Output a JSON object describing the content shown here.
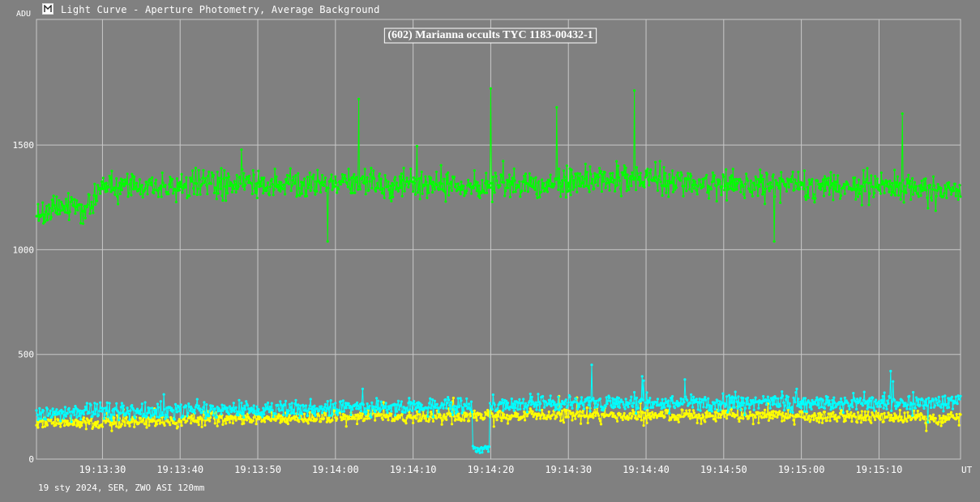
{
  "window": {
    "title": "Light Curve - Aperture Photometry, Average Background"
  },
  "footer": {
    "note": "19 sty 2024, SER, ZWO ASI 120mm"
  },
  "colors": {
    "background": "#808080",
    "grid": "#c8c8c8",
    "target_series": "#00ff00",
    "comparison_series": "#00ffff",
    "background_series": "#ffff00"
  },
  "chart_data": {
    "type": "line",
    "title": "(602) Marianna occults TYC 1183-00432-1",
    "ylabel": "ADU",
    "xlabel": "UT",
    "grid": true,
    "markers": true,
    "ylim": [
      0,
      2100
    ],
    "x_range": [
      "19:13:21.5",
      "19:15:20.5"
    ],
    "x_ticks": [
      "19:13:30",
      "19:13:40",
      "19:13:50",
      "19:14:00",
      "19:14:10",
      "19:14:20",
      "19:14:30",
      "19:14:40",
      "19:14:50",
      "19:15:00",
      "19:15:10"
    ],
    "y_ticks": [
      0,
      500,
      1000,
      1500
    ],
    "x_step_seconds": 0.1,
    "series": [
      {
        "color": "#00ff00",
        "baseline_profile": [
          [
            0,
            1180
          ],
          [
            7,
            1200
          ],
          [
            9,
            1300
          ],
          [
            30,
            1320
          ],
          [
            60,
            1300
          ],
          [
            78,
            1340
          ],
          [
            90,
            1310
          ],
          [
            110,
            1300
          ],
          [
            119,
            1270
          ]
        ],
        "scatter": 70,
        "spikes": [
          [
            41.5,
            1720
          ],
          [
            58.5,
            1770
          ],
          [
            67.0,
            1680
          ],
          [
            77.0,
            1760
          ],
          [
            111.5,
            1650
          ],
          [
            37.5,
            1040
          ],
          [
            95.0,
            1040
          ]
        ],
        "values_note": "≈1180–1340 ADU, ~0.1 s cadence"
      },
      {
        "color": "#00ffff",
        "baseline_profile": [
          [
            0,
            220
          ],
          [
            30,
            240
          ],
          [
            50,
            250
          ],
          [
            70,
            270
          ],
          [
            90,
            270
          ],
          [
            119,
            270
          ]
        ],
        "scatter": 40,
        "dip": {
          "start": "19:14:17.6",
          "end": "19:14:19.8",
          "level": 50
        },
        "spikes": [
          [
            71.5,
            450
          ],
          [
            83.5,
            380
          ],
          [
            110.0,
            420
          ]
        ],
        "values_note": "≈220–270 ADU, drops to ≈50 ADU during event"
      },
      {
        "color": "#ffff00",
        "baseline_profile": [
          [
            0,
            170
          ],
          [
            30,
            195
          ],
          [
            60,
            205
          ],
          [
            90,
            210
          ],
          [
            119,
            195
          ]
        ],
        "scatter": 30,
        "spikes": [],
        "values_note": "≈170–210 ADU"
      }
    ]
  }
}
